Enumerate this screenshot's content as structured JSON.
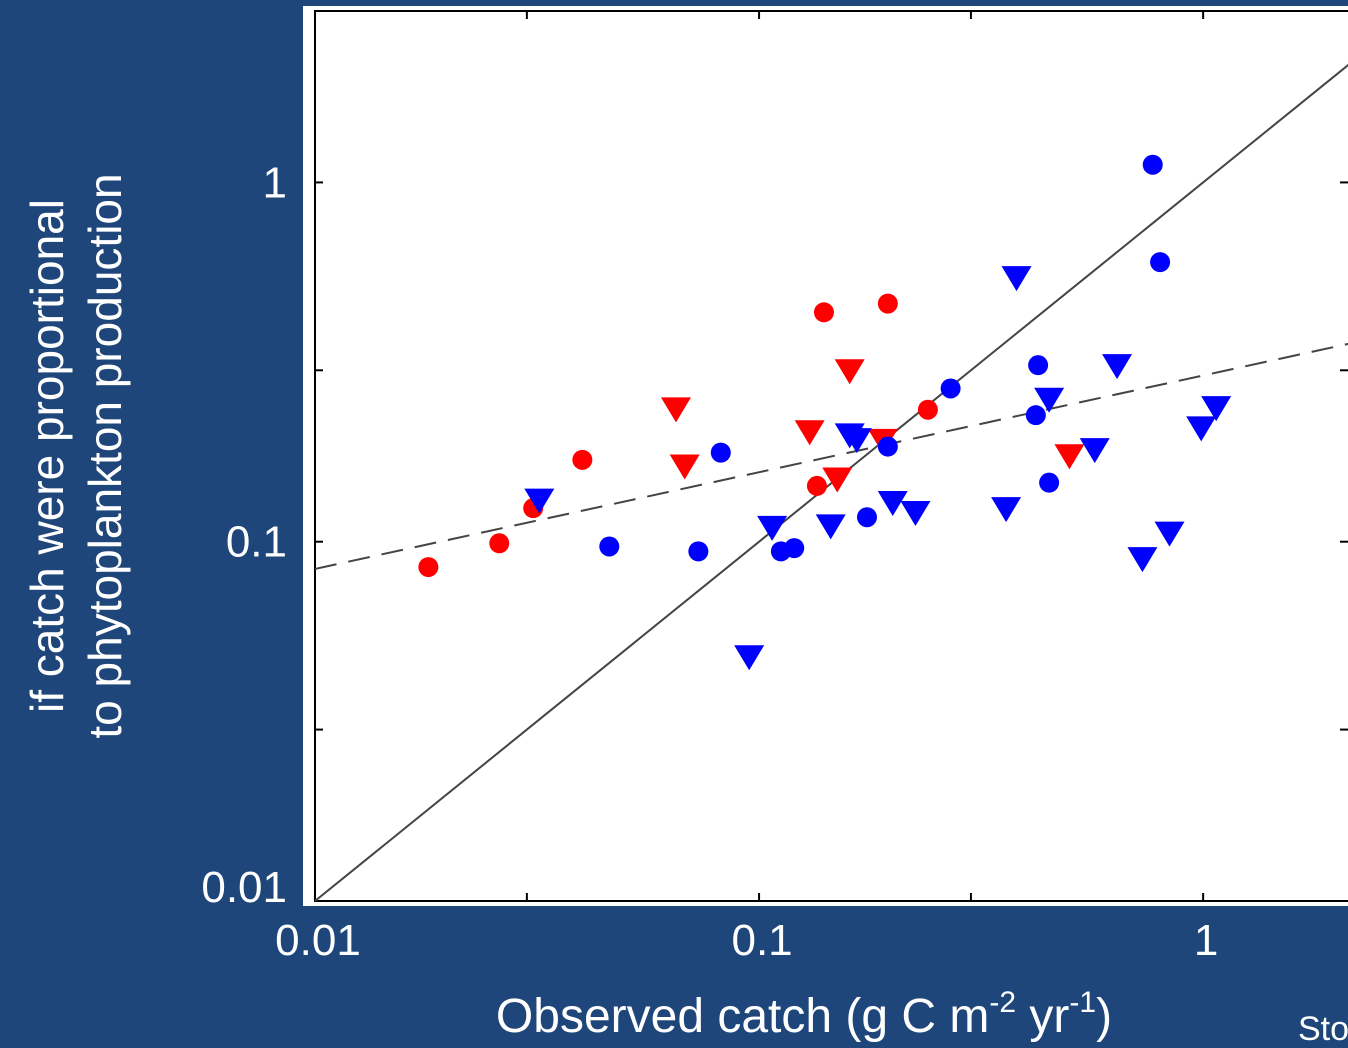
{
  "chart_data": {
    "type": "scatter",
    "title": "",
    "xlabel": "Observed catch  (g C m",
    "xlabel_sup1": "-2",
    "xlabel_mid": " yr",
    "xlabel_sup2": "-1",
    "xlabel_end": ")",
    "ylabel_line1": "if catch were proportional",
    "ylabel_line2": "to phytoplankton production",
    "x_scale": "log",
    "y_scale": "log",
    "xlim": [
      0.01,
      3
    ],
    "ylim": [
      0.01,
      3
    ],
    "x_ticks": [
      {
        "value": 0.01,
        "label": "0.01"
      },
      {
        "value": 0.1,
        "label": "0.1"
      },
      {
        "value": 1,
        "label": "1"
      }
    ],
    "x_minor_ticks": [
      0.03,
      0.3,
      3
    ],
    "y_ticks": [
      {
        "value": 0.01,
        "label": "0.01"
      },
      {
        "value": 0.1,
        "label": "0.1"
      },
      {
        "value": 1,
        "label": "1"
      }
    ],
    "y_minor_ticks": [
      0.03,
      0.3
    ],
    "grid": false,
    "corner_text": "Sto",
    "colors": {
      "background": "#1f467a",
      "red": "#ff0000",
      "blue": "#0000ff"
    },
    "series": [
      {
        "marker": "circle",
        "color": "#ff0000",
        "points": [
          [
            0.018,
            0.085
          ],
          [
            0.026,
            0.099
          ],
          [
            0.031,
            0.124
          ],
          [
            0.04,
            0.169
          ],
          [
            0.135,
            0.143
          ],
          [
            0.14,
            0.435
          ],
          [
            0.195,
            0.46
          ],
          [
            0.24,
            0.233
          ]
        ]
      },
      {
        "marker": "triangle-down",
        "color": "#ff0000",
        "points": [
          [
            0.065,
            0.235
          ],
          [
            0.068,
            0.163
          ],
          [
            0.13,
            0.203
          ],
          [
            0.15,
            0.15
          ],
          [
            0.16,
            0.3
          ],
          [
            0.19,
            0.192
          ],
          [
            0.5,
            0.174
          ]
        ]
      },
      {
        "marker": "circle",
        "color": "#0000ff",
        "points": [
          [
            0.046,
            0.097
          ],
          [
            0.073,
            0.094
          ],
          [
            0.082,
            0.177
          ],
          [
            0.112,
            0.094
          ],
          [
            0.12,
            0.096
          ],
          [
            0.175,
            0.117
          ],
          [
            0.195,
            0.184
          ],
          [
            0.27,
            0.267
          ],
          [
            0.42,
            0.225
          ],
          [
            0.425,
            0.31
          ],
          [
            0.45,
            0.146
          ],
          [
            0.77,
            1.12
          ],
          [
            0.8,
            0.6
          ]
        ]
      },
      {
        "marker": "triangle-down",
        "color": "#0000ff",
        "points": [
          [
            0.032,
            0.131
          ],
          [
            0.095,
            0.048
          ],
          [
            0.107,
            0.11
          ],
          [
            0.145,
            0.111
          ],
          [
            0.16,
            0.199
          ],
          [
            0.166,
            0.193
          ],
          [
            0.2,
            0.129
          ],
          [
            0.225,
            0.121
          ],
          [
            0.36,
            0.124
          ],
          [
            0.38,
            0.545
          ],
          [
            0.45,
            0.25
          ],
          [
            0.57,
            0.181
          ],
          [
            0.64,
            0.31
          ],
          [
            0.73,
            0.09
          ],
          [
            0.84,
            0.106
          ],
          [
            0.99,
            0.208
          ],
          [
            1.07,
            0.237
          ]
        ]
      }
    ],
    "lines": [
      {
        "style": "solid",
        "points": [
          [
            0.01,
            0.01
          ],
          [
            3,
            3
          ]
        ]
      },
      {
        "style": "dashed",
        "points": [
          [
            0.01,
            0.084
          ],
          [
            3,
            0.39
          ]
        ]
      }
    ]
  }
}
